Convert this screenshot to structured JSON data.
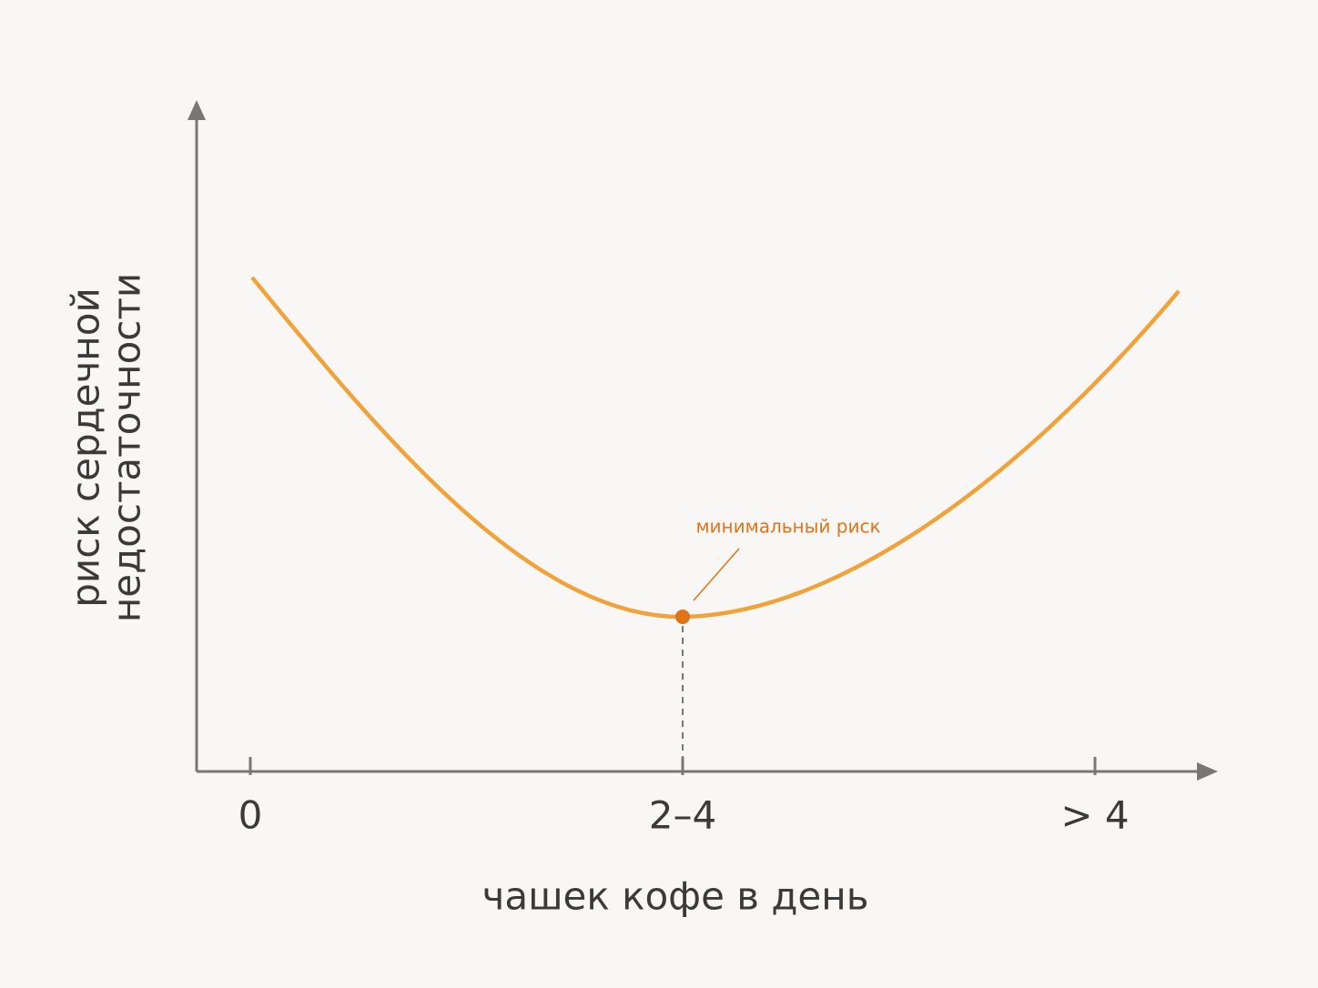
{
  "chart_data": {
    "type": "line",
    "categories": [
      "0",
      "2–4",
      "> 4"
    ],
    "x_label": "чашек кофе в день",
    "y_label": [
      "риск сердечной",
      "недостаточности"
    ],
    "annotation": "минимальный риск",
    "color": "#f0a33a"
  }
}
